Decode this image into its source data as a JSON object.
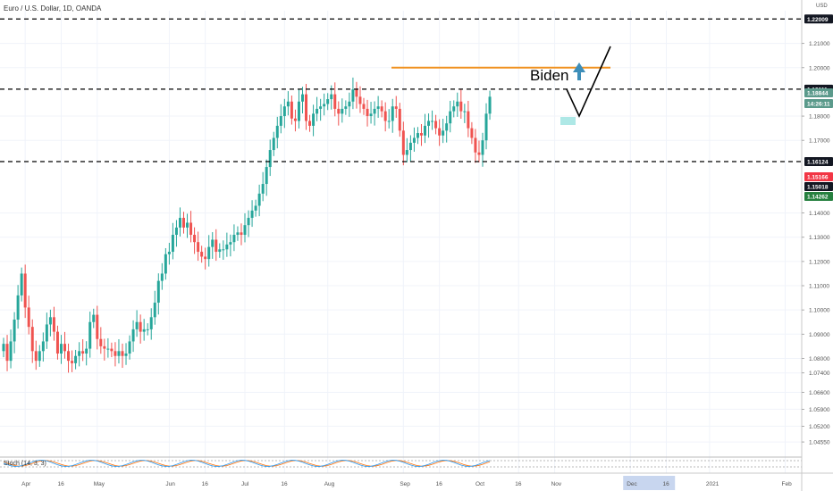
{
  "header": {
    "title": "Euro / U.S. Dollar, 1D, OANDA",
    "currency": "USD"
  },
  "annotation": {
    "text": "Biden"
  },
  "stoch": {
    "label": "Stoch (14, 3, 3)"
  },
  "price_tags": [
    {
      "text": "1.22009",
      "value": 1.22009,
      "bg": "#131722",
      "fg": "#ffffff"
    },
    {
      "text": "1.19111",
      "value": 1.19111,
      "bg": "#131722",
      "fg": "#ffffff"
    },
    {
      "text": "1.18844",
      "value": 1.18844,
      "bg": "#5b9a8b",
      "fg": "#ffffff"
    },
    {
      "text": "14:26:11",
      "value": 1.18444,
      "bg": "#5b9a8b",
      "fg": "#ffffff"
    },
    {
      "text": "1.16124",
      "value": 1.16124,
      "bg": "#131722",
      "fg": "#ffffff"
    },
    {
      "text": "1.15166",
      "value": 1.15166,
      "bg": "#f23645",
      "fg": "#ffffff"
    },
    {
      "text": "1.15018",
      "value": 1.15018,
      "bg": "#131722",
      "fg": "#ffffff"
    },
    {
      "text": "1.14262",
      "value": 1.14262,
      "bg": "#26803f",
      "fg": "#ffffff"
    }
  ],
  "x_ticks": [
    {
      "label": "Apr",
      "i": 6
    },
    {
      "label": "16",
      "i": 16
    },
    {
      "label": "May",
      "i": 26
    },
    {
      "label": "Jun",
      "i": 46
    },
    {
      "label": "16",
      "i": 56
    },
    {
      "label": "Jul",
      "i": 67
    },
    {
      "label": "16",
      "i": 78
    },
    {
      "label": "Aug",
      "i": 90
    },
    {
      "label": "Sep",
      "i": 111
    },
    {
      "label": "16",
      "i": 121
    },
    {
      "label": "Oct",
      "i": 132
    },
    {
      "label": "16",
      "i": 143
    },
    {
      "label": "Nov",
      "i": 153
    },
    {
      "label": "Dec",
      "i": 174
    },
    {
      "label": "16",
      "i": 184
    },
    {
      "label": "2021",
      "i": 196
    },
    {
      "label": "Feb",
      "i": 217
    }
  ],
  "highlight_tick": "Dec",
  "colors": {
    "up": "#26a69a",
    "down": "#ef5350",
    "grid": "#f0f3fa",
    "hline": "#000000",
    "resistance": "#f0911f",
    "arrow": "#3d8eb9",
    "projection": "#000000",
    "stoch_k": "#2196f3",
    "stoch_d": "#ff6d00"
  },
  "chart_data": {
    "type": "candlestick",
    "symbol": "Euro / U.S. Dollar, 1D, OANDA",
    "y_ticks": [
      1.21,
      1.2,
      1.18,
      1.17,
      1.14,
      1.13,
      1.12,
      1.11,
      1.1,
      1.09,
      1.08,
      1.074,
      1.066,
      1.059,
      1.052,
      1.0455
    ],
    "ylim": [
      1.04,
      1.2235
    ],
    "horizontal_lines": [
      1.22009,
      1.19111,
      1.16124
    ],
    "resistance_line": 1.2,
    "series_close": [
      1.086,
      1.079,
      1.087,
      1.096,
      1.106,
      1.115,
      1.101,
      1.093,
      1.083,
      1.079,
      1.083,
      1.087,
      1.094,
      1.097,
      1.091,
      1.082,
      1.086,
      1.083,
      1.079,
      1.078,
      1.081,
      1.083,
      1.082,
      1.084,
      1.095,
      1.098,
      1.088,
      1.085,
      1.084,
      1.084,
      1.083,
      1.081,
      1.083,
      1.081,
      1.082,
      1.087,
      1.092,
      1.095,
      1.091,
      1.092,
      1.092,
      1.097,
      1.103,
      1.112,
      1.115,
      1.123,
      1.124,
      1.131,
      1.134,
      1.138,
      1.134,
      1.136,
      1.131,
      1.128,
      1.124,
      1.122,
      1.121,
      1.126,
      1.129,
      1.124,
      1.125,
      1.125,
      1.127,
      1.128,
      1.131,
      1.132,
      1.131,
      1.135,
      1.138,
      1.141,
      1.143,
      1.148,
      1.152,
      1.159,
      1.166,
      1.171,
      1.176,
      1.18,
      1.184,
      1.186,
      1.179,
      1.178,
      1.186,
      1.189,
      1.178,
      1.176,
      1.181,
      1.183,
      1.184,
      1.185,
      1.187,
      1.189,
      1.183,
      1.181,
      1.183,
      1.184,
      1.186,
      1.191,
      1.188,
      1.185,
      1.183,
      1.18,
      1.181,
      1.183,
      1.184,
      1.182,
      1.178,
      1.178,
      1.184,
      1.183,
      1.174,
      1.164,
      1.166,
      1.169,
      1.171,
      1.173,
      1.172,
      1.176,
      1.178,
      1.178,
      1.175,
      1.172,
      1.174,
      1.177,
      1.182,
      1.184,
      1.186,
      1.182,
      1.182,
      1.175,
      1.171,
      1.165,
      1.164,
      1.17,
      1.181,
      1.188
    ],
    "projection_path": [
      [
        1.19111,
        "now"
      ],
      [
        1.175,
        "low"
      ],
      [
        1.205,
        "target"
      ]
    ],
    "title": "Euro / U.S. Dollar, 1D, OANDA"
  }
}
